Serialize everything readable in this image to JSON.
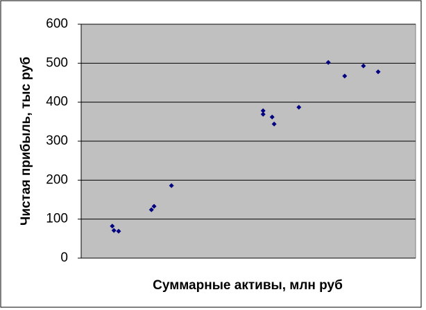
{
  "chart_data": {
    "type": "scatter",
    "x_label": "Суммарные активы, млн руб",
    "y_label": "Чистая прибыль, тыс руб",
    "x": [
      9.3,
      9.8,
      11.2,
      21.0,
      21.8,
      27.0,
      54.4,
      54.4,
      57.1,
      57.7,
      65.1,
      73.9,
      78.8,
      84.4,
      88.8
    ],
    "values": [
      82,
      71,
      69,
      124,
      133,
      186,
      378,
      369,
      362,
      344,
      387,
      502,
      467,
      493,
      478
    ],
    "color": "#000080",
    "xlim": [
      0,
      100
    ],
    "ylim": [
      0,
      600
    ],
    "yticks": [
      0,
      100,
      200,
      300,
      400,
      500,
      600
    ],
    "grid": true
  }
}
